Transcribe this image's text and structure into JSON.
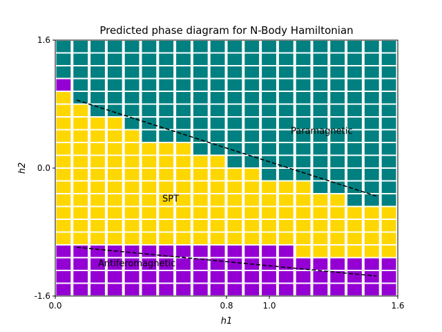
{
  "chart_data": {
    "type": "heatmap",
    "title": "Predicted phase diagram for N-Body Hamiltonian",
    "xlabel": "h1",
    "ylabel": "h2",
    "xlim": [
      0.0,
      1.6
    ],
    "ylim": [
      -1.6,
      1.6
    ],
    "x_ticks": [
      {
        "value": 0.0,
        "label": "0.0"
      },
      {
        "value": 0.8,
        "label": "0.8"
      },
      {
        "value": 1.0,
        "label": "1.0"
      },
      {
        "value": 1.6,
        "label": "1.6"
      }
    ],
    "y_ticks": [
      {
        "value": 1.6,
        "label": "1.6"
      },
      {
        "value": 0.0,
        "label": "0.0"
      },
      {
        "value": -1.6,
        "label": "-1.6"
      }
    ],
    "grid": false,
    "n_columns": 20,
    "n_rows": 20,
    "phase_colors": {
      "Antiferomagnetic": "#9400d3",
      "SPT": "#ffd700",
      "Paramagnetic": "#008080"
    },
    "columns_purple_bottom_rows": [
      4,
      4,
      4,
      4,
      4,
      4,
      4,
      4,
      4,
      4,
      4,
      4,
      4,
      4,
      3,
      3,
      3,
      3,
      3,
      3
    ],
    "columns_spt_top_row": [
      16,
      15,
      14,
      14,
      13,
      12,
      12,
      12,
      11,
      11,
      10,
      10,
      9,
      9,
      9,
      8,
      8,
      7,
      7,
      7
    ],
    "columns_extra_purple_top": [
      1,
      0,
      0,
      0,
      0,
      0,
      0,
      0,
      0,
      0,
      0,
      0,
      0,
      0,
      0,
      0,
      0,
      0,
      0,
      0
    ],
    "boundaries": [
      {
        "name": "upper",
        "x": [
          0.1,
          1.5
        ],
        "y": [
          0.85,
          -0.35
        ]
      },
      {
        "name": "lower",
        "x": [
          0.1,
          1.5
        ],
        "y": [
          -0.99,
          -1.35
        ]
      }
    ],
    "annotations": [
      {
        "text": "Paramagnetic",
        "x": 1.1,
        "y": 0.43
      },
      {
        "text": "SPT",
        "x": 0.5,
        "y": -0.42
      },
      {
        "text": "Antiferomagnetic",
        "x": 0.2,
        "y": -1.23
      }
    ]
  }
}
